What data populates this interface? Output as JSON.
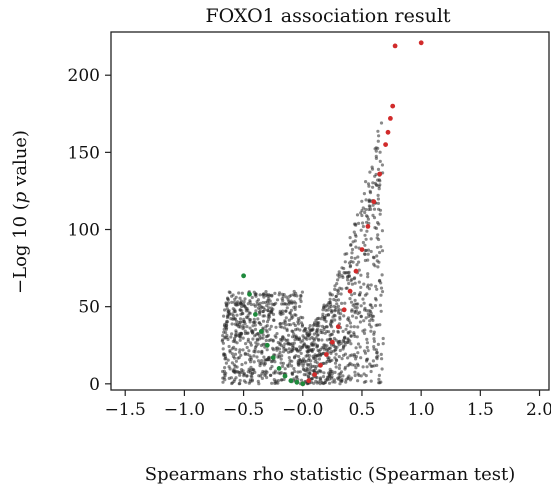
{
  "chart_data": {
    "type": "scatter",
    "title": "FOXO1 association result",
    "xlabel": "Spearmans rho statistic (Spearman test)",
    "ylabel_prefix": "−Log 10 (",
    "ylabel_italic": "p",
    "ylabel_suffix": " value)",
    "xlim": [
      -1.62,
      2.08
    ],
    "ylim": [
      -4,
      228
    ],
    "xticks": [
      -1.5,
      -1.0,
      -0.5,
      0.0,
      0.5,
      1.0,
      1.5,
      2.0
    ],
    "xtick_labels": [
      "−1.5",
      "−1.0",
      "−0.5",
      "−0.0",
      "0.5",
      "1.0",
      "1.5",
      "2.0"
    ],
    "yticks": [
      0,
      50,
      100,
      150,
      200
    ],
    "ytick_labels": [
      "0",
      "50",
      "100",
      "150",
      "200"
    ],
    "grid": false,
    "legend": "none",
    "series": [
      {
        "color": "#2a2a2a",
        "x_range": [
          -0.68,
          0.68
        ],
        "y_max": 175,
        "count": 1400
      },
      {
        "color": "#d12b2b",
        "x": [
          0.0,
          0.05,
          0.1,
          0.15,
          0.2,
          0.25,
          0.3,
          0.35,
          0.4,
          0.45,
          0.5,
          0.55,
          0.6,
          0.65,
          0.7,
          0.72,
          0.74,
          0.76,
          0.78,
          1.0
        ],
        "y": [
          0,
          2,
          6,
          12,
          19,
          27,
          37,
          48,
          60,
          73,
          87,
          102,
          118,
          136,
          155,
          163,
          172,
          180,
          219,
          221
        ]
      },
      {
        "color": "#1e8a3c",
        "x": [
          -0.5,
          -0.45,
          -0.4,
          -0.35,
          -0.3,
          -0.25,
          -0.2,
          -0.15,
          -0.1,
          -0.05,
          0.0
        ],
        "y": [
          70,
          58,
          45,
          34,
          25,
          17,
          10,
          5,
          2,
          1,
          0
        ]
      }
    ]
  }
}
